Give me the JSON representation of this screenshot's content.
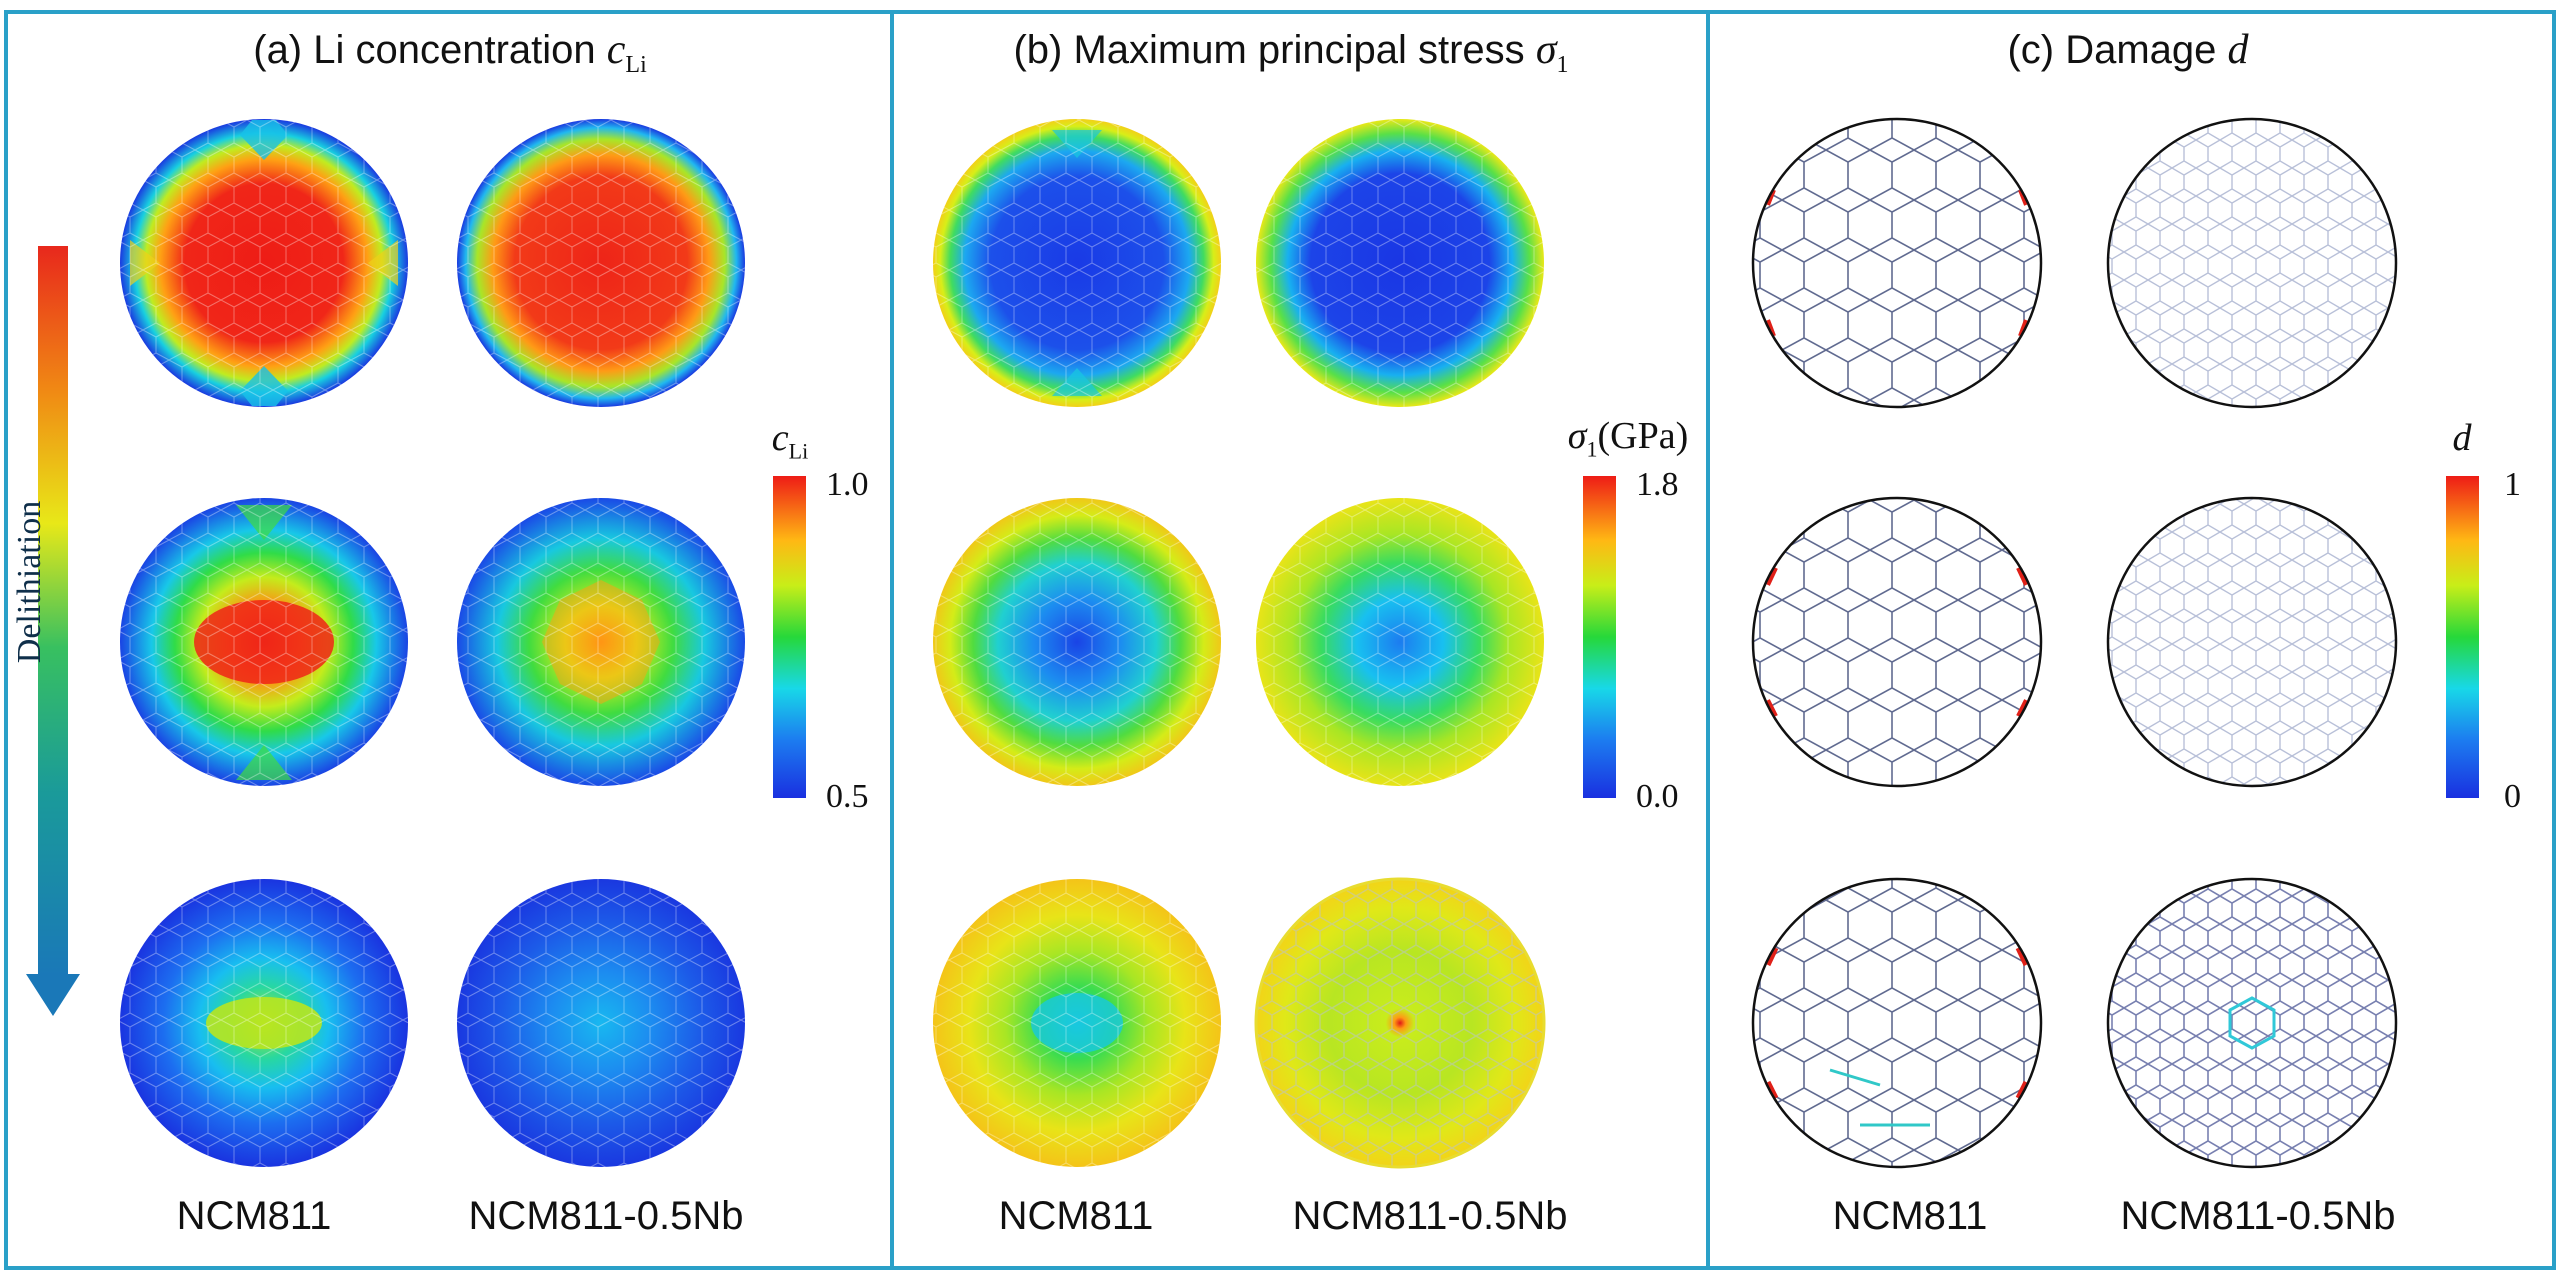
{
  "panels": [
    {
      "id": "a",
      "title_prefix": "(a) Li concentration",
      "symbol": "c",
      "symbol_sub": "Li",
      "colorbar": {
        "label_symbol": "c",
        "label_sub": "Li",
        "label_unit": "",
        "max": "1.0",
        "min": "0.5"
      }
    },
    {
      "id": "b",
      "title_prefix": "(b) Maximum principal stress",
      "symbol": "σ",
      "symbol_sub": "1",
      "colorbar": {
        "label_symbol": "σ",
        "label_sub": "1",
        "label_unit": "(GPa)",
        "max": "1.8",
        "min": "0.0"
      }
    },
    {
      "id": "c",
      "title_prefix": "(c) Damage",
      "symbol": "d",
      "symbol_sub": "",
      "colorbar": {
        "label_symbol": "d",
        "label_sub": "",
        "label_unit": "",
        "max": "1",
        "min": "0"
      }
    }
  ],
  "arrow": {
    "label": "Delithiation"
  },
  "column_labels": [
    "NCM811",
    "NCM811-0.5Nb"
  ],
  "colors": {
    "frame": "#2aa0c8",
    "arrow_top": "#e8281c",
    "arrow_bottom": "#1a78b8"
  }
}
